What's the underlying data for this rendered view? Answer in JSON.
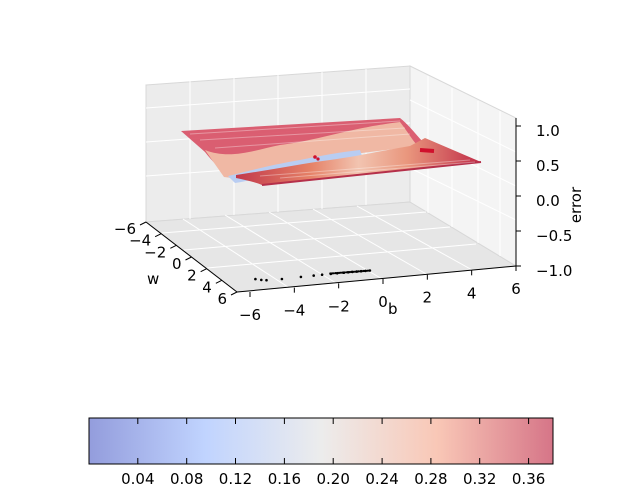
{
  "chart_data": {
    "type": "surface3d",
    "title": "",
    "xlabel": "w",
    "ylabel": "b",
    "zlabel": "error",
    "w_ticks": [
      "−6",
      "−4",
      "−2",
      "0",
      "2",
      "4",
      "6"
    ],
    "b_ticks": [
      "−6",
      "−4",
      "−2",
      "0",
      "2",
      "4",
      "6"
    ],
    "z_ticks": [
      "1.0",
      "0.5",
      "0.0",
      "−0.5",
      "−1.0"
    ],
    "w_range": [
      -6,
      6
    ],
    "b_range": [
      -6,
      6
    ],
    "z_range": [
      -1,
      1
    ],
    "colormap": "coolwarm",
    "surface": {
      "description_values": {
        "plateau_error": 0.38,
        "valley_error": 0.02
      }
    },
    "descent_path_projection": {
      "color": "#000000",
      "points_b": [
        -3.2,
        -3.0,
        -2.8,
        -2.1,
        -1.2,
        -0.6,
        -0.2,
        0.2,
        0.5,
        0.8,
        1.0,
        1.2,
        1.4,
        1.6,
        1.8,
        2.0
      ],
      "points_w": [
        0.3,
        0.5,
        0.6,
        0.6,
        0.5,
        0.45,
        0.4,
        0.38,
        0.36,
        0.35,
        0.34,
        0.33,
        0.33,
        0.32,
        0.32,
        0.32
      ]
    },
    "colorbar": {
      "ticks": [
        "0.04",
        "0.08",
        "0.12",
        "0.16",
        "0.20",
        "0.24",
        "0.28",
        "0.32",
        "0.36"
      ],
      "min": 0.0,
      "max": 0.38
    },
    "grid": true
  }
}
